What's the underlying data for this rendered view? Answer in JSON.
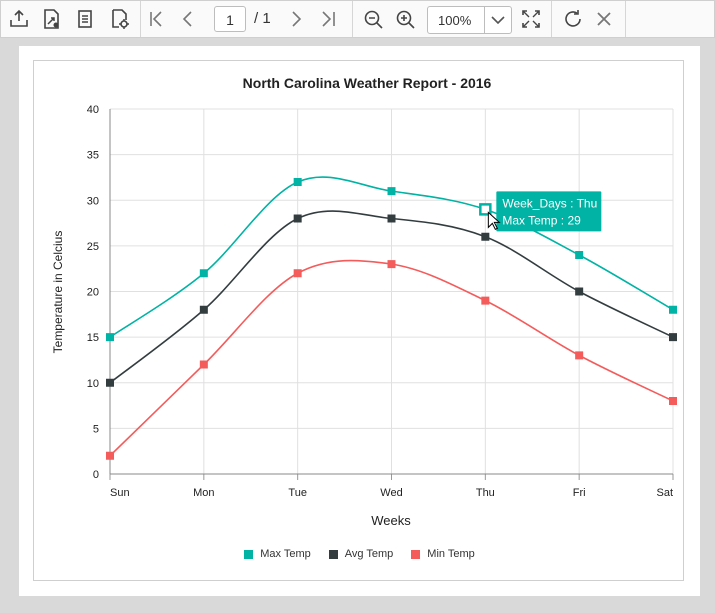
{
  "toolbar": {
    "buttons": [
      "export-icon",
      "print-setup-icon",
      "document-icon",
      "settings-doc-icon",
      "first-page-icon",
      "prev-page-icon",
      "next-page-icon",
      "last-page-icon",
      "zoom-out-icon",
      "zoom-in-icon",
      "fit-page-icon",
      "refresh-icon",
      "close-icon"
    ],
    "page_current": "1",
    "page_total": "/ 1",
    "zoom": "100%"
  },
  "chart_data": {
    "type": "line",
    "title": "North Carolina Weather Report - 2016",
    "xlabel": "Weeks",
    "ylabel": "Temperature in Celcius",
    "categories": [
      "Sun",
      "Mon",
      "Tue",
      "Wed",
      "Thu",
      "Fri",
      "Sat"
    ],
    "ylim": [
      0,
      40
    ],
    "yticks": [
      0,
      5,
      10,
      15,
      20,
      25,
      30,
      35,
      40
    ],
    "grid": true,
    "legend_position": "bottom",
    "series": [
      {
        "name": "Max Temp",
        "color": "#00b3a4",
        "values": [
          15,
          22,
          32,
          31,
          29,
          24,
          18
        ]
      },
      {
        "name": "Avg Temp",
        "color": "#333d40",
        "values": [
          10,
          18,
          28,
          28,
          26,
          20,
          15
        ]
      },
      {
        "name": "Min Temp",
        "color": "#f45b5b",
        "values": [
          2,
          12,
          22,
          23,
          19,
          13,
          8
        ]
      }
    ],
    "tooltip": {
      "series_index": 0,
      "point_index": 4,
      "line1": "Week_Days : Thu",
      "line2": "Max Temp : 29"
    }
  }
}
